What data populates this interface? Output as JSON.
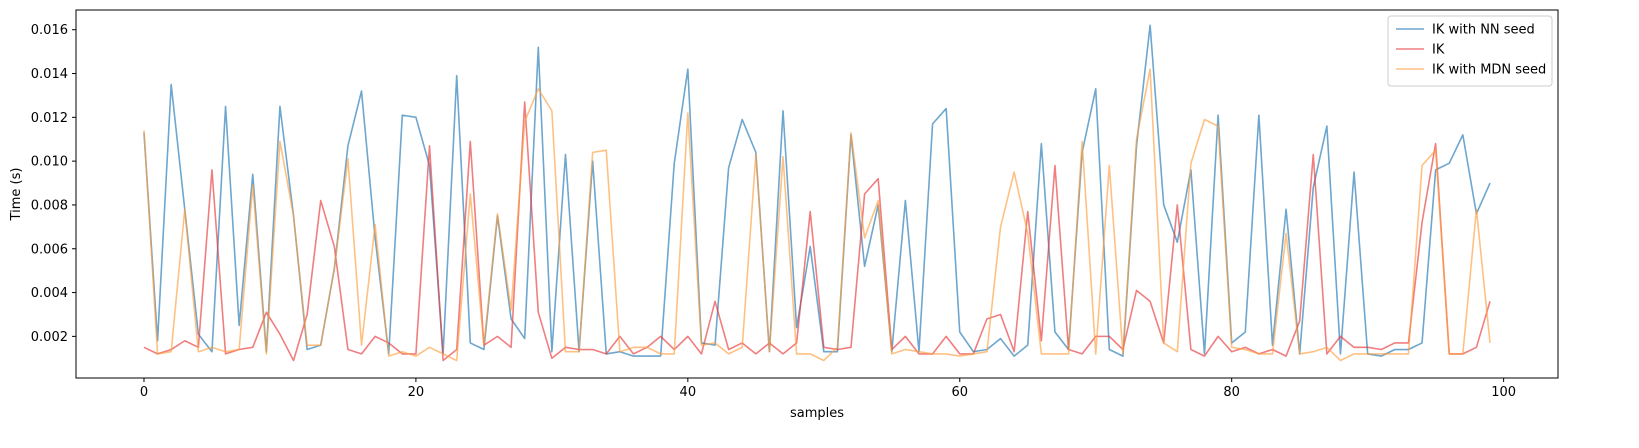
{
  "chart_data": {
    "type": "line",
    "title": "",
    "xlabel": "samples",
    "ylabel": "Time (s)",
    "xlim": [
      -5,
      104
    ],
    "ylim": [
      0.0001,
      0.0169
    ],
    "xticks": [
      0,
      20,
      40,
      60,
      80,
      100
    ],
    "xtick_labels": [
      "0",
      "20",
      "40",
      "60",
      "80",
      "100"
    ],
    "yticks": [
      0.002,
      0.004,
      0.006,
      0.008,
      0.01,
      0.012,
      0.014,
      0.016
    ],
    "ytick_labels": [
      "0.002",
      "0.004",
      "0.006",
      "0.008",
      "0.010",
      "0.012",
      "0.014",
      "0.016"
    ],
    "grid": false,
    "legend_position": "top-right",
    "series": [
      {
        "name": "IK with NN seed",
        "color": "#1f77b4",
        "values": [
          0.0113,
          0.0018,
          0.0135,
          0.0078,
          0.0021,
          0.0013,
          0.0125,
          0.0025,
          0.0094,
          0.0013,
          0.0125,
          0.0075,
          0.0014,
          0.0016,
          0.0051,
          0.0107,
          0.0132,
          0.0065,
          0.0012,
          0.0121,
          0.012,
          0.0098,
          0.0012,
          0.0139,
          0.0017,
          0.0014,
          0.0075,
          0.0028,
          0.0019,
          0.0152,
          0.0013,
          0.0103,
          0.0013,
          0.01,
          0.0012,
          0.0013,
          0.0011,
          0.0011,
          0.0011,
          0.0099,
          0.0142,
          0.0017,
          0.0016,
          0.0097,
          0.0119,
          0.0104,
          0.0013,
          0.0123,
          0.0024,
          0.0061,
          0.0013,
          0.0013,
          0.0112,
          0.0052,
          0.008,
          0.0013,
          0.0082,
          0.0013,
          0.0117,
          0.0124,
          0.0022,
          0.0013,
          0.0014,
          0.0019,
          0.0011,
          0.0016,
          0.0108,
          0.0022,
          0.0014,
          0.0104,
          0.0133,
          0.0014,
          0.0011,
          0.0107,
          0.0162,
          0.008,
          0.0063,
          0.0096,
          0.0012,
          0.0121,
          0.0017,
          0.0022,
          0.0121,
          0.0016,
          0.0078,
          0.0012,
          0.0088,
          0.0116,
          0.0012,
          0.0095,
          0.0012,
          0.0011,
          0.0014,
          0.0014,
          0.0017,
          0.0096,
          0.0099,
          0.0112,
          0.0076,
          0.009
        ]
      },
      {
        "name": "IK",
        "color": "#e8393a",
        "values": [
          0.0015,
          0.0012,
          0.0014,
          0.0018,
          0.0015,
          0.0096,
          0.0012,
          0.0014,
          0.0015,
          0.0031,
          0.0021,
          0.0009,
          0.003,
          0.0082,
          0.0061,
          0.0014,
          0.0012,
          0.002,
          0.0017,
          0.0012,
          0.0012,
          0.0107,
          0.0009,
          0.0014,
          0.0109,
          0.0016,
          0.002,
          0.0015,
          0.0127,
          0.0031,
          0.001,
          0.0015,
          0.0014,
          0.0014,
          0.0012,
          0.002,
          0.0012,
          0.0015,
          0.002,
          0.0014,
          0.002,
          0.0012,
          0.0036,
          0.0014,
          0.0017,
          0.0012,
          0.0017,
          0.0012,
          0.0017,
          0.0077,
          0.0015,
          0.0014,
          0.0015,
          0.0085,
          0.0092,
          0.0014,
          0.002,
          0.0012,
          0.0012,
          0.002,
          0.0012,
          0.0012,
          0.0028,
          0.003,
          0.0013,
          0.0077,
          0.0018,
          0.0098,
          0.0014,
          0.0012,
          0.002,
          0.002,
          0.0014,
          0.0041,
          0.0036,
          0.0017,
          0.008,
          0.0014,
          0.0011,
          0.002,
          0.0013,
          0.0015,
          0.0012,
          0.0014,
          0.0011,
          0.0027,
          0.0103,
          0.0012,
          0.002,
          0.0015,
          0.0015,
          0.0014,
          0.0017,
          0.0017,
          0.0072,
          0.0108,
          0.0012,
          0.0012,
          0.0015,
          0.0036
        ]
      },
      {
        "name": "IK with MDN seed",
        "color": "#ffa040",
        "values": [
          0.0114,
          0.0012,
          0.0013,
          0.0078,
          0.0013,
          0.0015,
          0.0013,
          0.0014,
          0.0089,
          0.0012,
          0.0109,
          0.0075,
          0.0016,
          0.0016,
          0.0051,
          0.0101,
          0.0016,
          0.0071,
          0.0011,
          0.0013,
          0.0011,
          0.0015,
          0.0012,
          0.0009,
          0.0085,
          0.0016,
          0.0076,
          0.0032,
          0.0118,
          0.0133,
          0.0123,
          0.0013,
          0.0013,
          0.0104,
          0.0105,
          0.0013,
          0.0015,
          0.0015,
          0.0012,
          0.0012,
          0.0122,
          0.0016,
          0.0017,
          0.0012,
          0.0015,
          0.0103,
          0.0013,
          0.0102,
          0.0012,
          0.0012,
          0.0009,
          0.0015,
          0.0113,
          0.0065,
          0.0082,
          0.0012,
          0.0014,
          0.0013,
          0.0012,
          0.0012,
          0.0011,
          0.0012,
          0.0013,
          0.007,
          0.0095,
          0.0067,
          0.0012,
          0.0012,
          0.0012,
          0.0109,
          0.0012,
          0.0098,
          0.0012,
          0.011,
          0.0142,
          0.0017,
          0.0013,
          0.0099,
          0.0119,
          0.0116,
          0.0015,
          0.0014,
          0.0012,
          0.0012,
          0.0067,
          0.0012,
          0.0013,
          0.0015,
          0.0009,
          0.0012,
          0.0012,
          0.0012,
          0.0012,
          0.0012,
          0.0098,
          0.0105,
          0.0012,
          0.0012,
          0.0078,
          0.0017
        ]
      }
    ]
  }
}
